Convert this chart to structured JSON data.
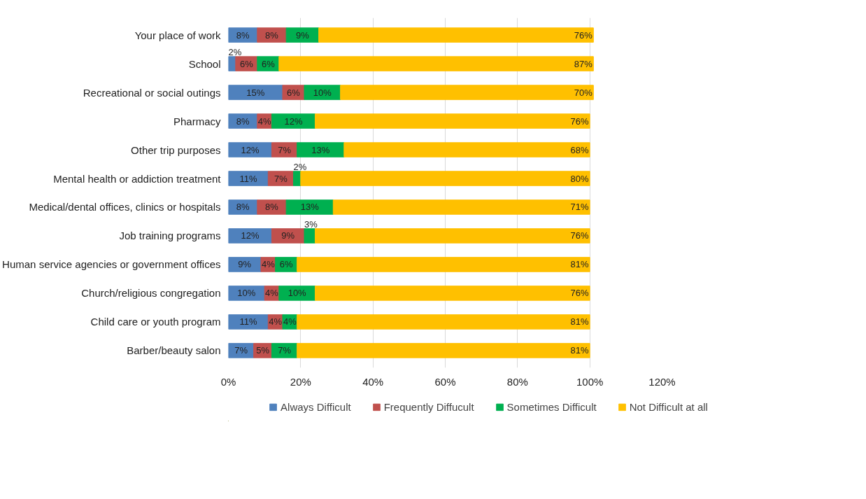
{
  "chart_data": {
    "type": "bar",
    "orientation": "horizontal",
    "stacked": true,
    "categories": [
      "Your place of work",
      "School",
      "Recreational or social outings",
      "Pharmacy",
      "Other trip purposes",
      "Mental health or addiction treatment",
      "Medical/dental offices, clinics or hospitals",
      "Job training programs",
      "Human service agencies or government offices",
      "Church/religious congregation",
      "Child care or youth program",
      "Barber/beauty salon"
    ],
    "series": [
      {
        "name": "Always Difficult",
        "color": "#4f81bd",
        "values": [
          8,
          2,
          15,
          8,
          12,
          11,
          8,
          12,
          9,
          10,
          11,
          7
        ],
        "value_labels": [
          "8%",
          "2%",
          "15%",
          "8%",
          "12%",
          "11%",
          "8%",
          "12%",
          "9%",
          "10%",
          "11%",
          "7%"
        ]
      },
      {
        "name": "Frequently Diffucult",
        "color": "#c0504d",
        "values": [
          8,
          6,
          6,
          4,
          7,
          7,
          8,
          9,
          4,
          4,
          4,
          5
        ],
        "value_labels": [
          "8%",
          "6%",
          "6%",
          "4%",
          "7%",
          "7%",
          "8%",
          "9%",
          "4%",
          "4%",
          "4%",
          "5%"
        ]
      },
      {
        "name": "Sometimes Difficult",
        "color": "#00b050",
        "values": [
          9,
          6,
          10,
          12,
          13,
          2,
          13,
          3,
          6,
          10,
          4,
          7
        ],
        "value_labels": [
          "9%",
          "6%",
          "10%",
          "12%",
          "13%",
          "2%",
          "13%",
          "3%",
          "6%",
          "10%",
          "4%",
          "7%"
        ]
      },
      {
        "name": "Not Difficult at all",
        "color": "#ffc000",
        "values": [
          76,
          87,
          70,
          76,
          68,
          80,
          71,
          76,
          81,
          76,
          81,
          81
        ],
        "value_labels": [
          "76%",
          "87%",
          "70%",
          "76%",
          "68%",
          "80%",
          "71%",
          "76%",
          "81%",
          "76%",
          "81%",
          "81%"
        ]
      }
    ],
    "xlim": [
      0,
      120
    ],
    "xticks": [
      {
        "value": 0,
        "label": "0%"
      },
      {
        "value": 20,
        "label": "20%"
      },
      {
        "value": 40,
        "label": "40%"
      },
      {
        "value": 60,
        "label": "60%"
      },
      {
        "value": 80,
        "label": "80%"
      },
      {
        "value": 100,
        "label": "100%"
      },
      {
        "value": 120,
        "label": "120%"
      }
    ],
    "grid": "x",
    "legend": "bottom"
  }
}
